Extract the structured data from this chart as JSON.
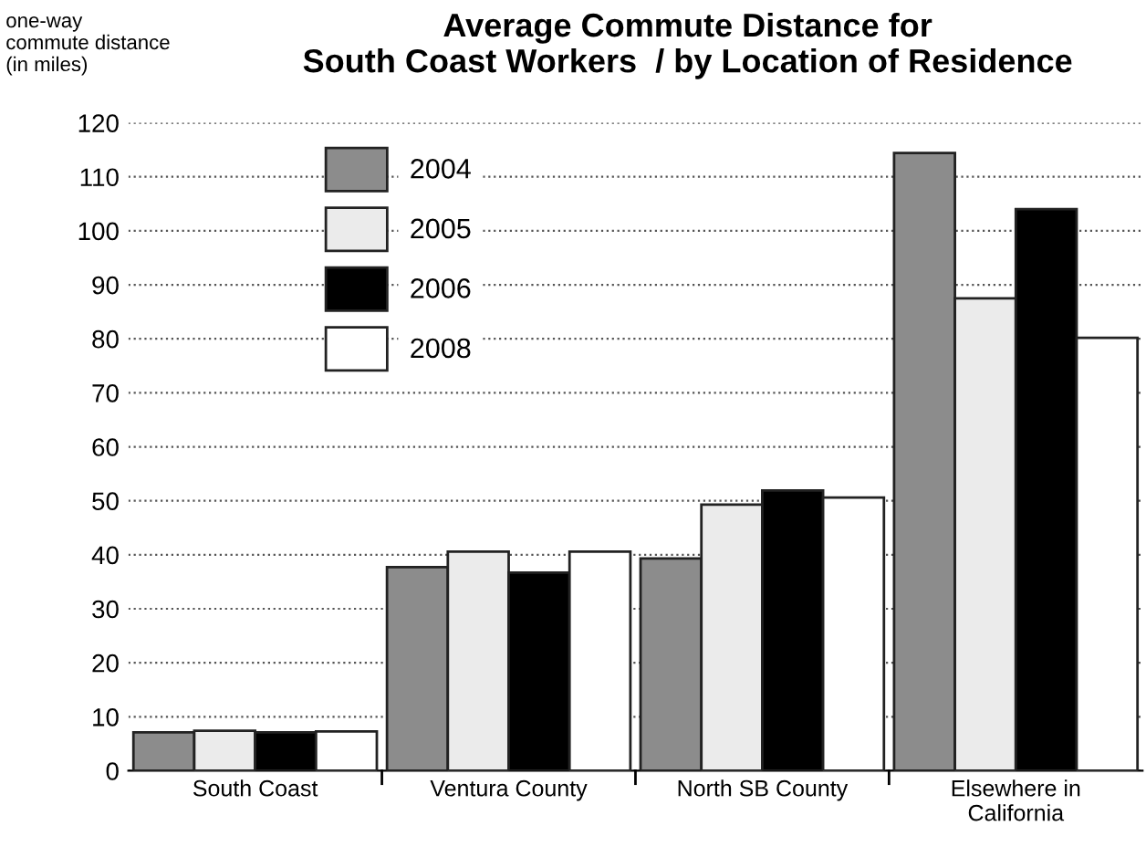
{
  "chart_data": {
    "type": "bar",
    "title": "Average Commute Distance for\nSouth Coast Workers  / by Location of Residence",
    "ylabel": "one-way\ncommute distance\n(in miles)",
    "categories": [
      "South Coast",
      "Ventura County",
      "North SB County",
      "Elsewhere in\nCalifornia"
    ],
    "series": [
      {
        "name": "2004",
        "color": "#8c8c8c",
        "values": [
          7.1,
          37.7,
          39.3,
          114.4
        ]
      },
      {
        "name": "2005",
        "color": "#ebebeb",
        "values": [
          7.4,
          40.6,
          49.3,
          87.5
        ]
      },
      {
        "name": "2006",
        "color": "#000000",
        "values": [
          7.1,
          36.7,
          51.9,
          104.0
        ]
      },
      {
        "name": "2008",
        "color": "#ffffff",
        "values": [
          7.3,
          40.6,
          50.6,
          80.2
        ]
      }
    ],
    "ylim": [
      0,
      120
    ],
    "yticks": [
      0,
      10,
      20,
      30,
      40,
      50,
      60,
      70,
      80,
      90,
      100,
      110,
      120
    ],
    "grid": "y",
    "legend": "top left"
  }
}
